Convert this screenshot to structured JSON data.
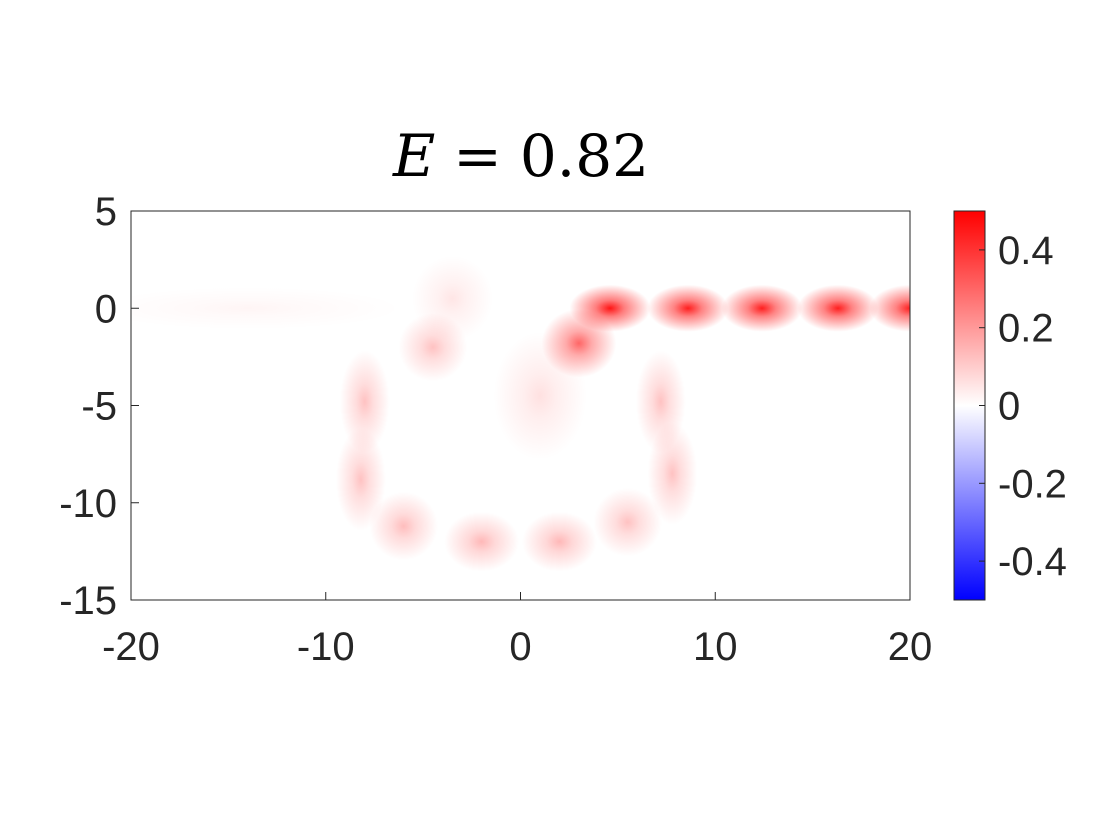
{
  "chart_data": {
    "type": "heatmap",
    "title": "E = 0.82",
    "title_parts": {
      "variable": "E",
      "equals": "=",
      "value": "0.82"
    },
    "xlabel": "",
    "ylabel": "",
    "xlim": [
      -20,
      20
    ],
    "ylim": [
      -15,
      5
    ],
    "xticks": [
      -20,
      -10,
      0,
      10,
      20
    ],
    "xtick_labels": [
      "-20",
      "-10",
      "0",
      "10",
      "20"
    ],
    "yticks": [
      5,
      0,
      -5,
      -10,
      -15
    ],
    "ytick_labels": [
      "5",
      "0",
      "-5",
      "-10",
      "-15"
    ],
    "colorbar": {
      "limits": [
        -0.5,
        0.5
      ],
      "ticks": [
        0.4,
        0.2,
        0,
        -0.2,
        -0.4
      ],
      "tick_labels": [
        "0.4",
        "0.2",
        "0",
        "-0.2",
        "-0.4"
      ],
      "colormap": [
        "#0000ff",
        "#ffffff",
        "#ff0000"
      ]
    },
    "grid": false,
    "blobs": [
      {
        "x": 4.6,
        "y": 0.0,
        "amp": 0.46,
        "sx": 1.3,
        "sy": 0.55
      },
      {
        "x": 8.6,
        "y": 0.0,
        "amp": 0.44,
        "sx": 1.3,
        "sy": 0.55
      },
      {
        "x": 12.4,
        "y": 0.0,
        "amp": 0.44,
        "sx": 1.3,
        "sy": 0.55
      },
      {
        "x": 16.3,
        "y": 0.0,
        "amp": 0.44,
        "sx": 1.3,
        "sy": 0.55
      },
      {
        "x": 20.0,
        "y": 0.0,
        "amp": 0.44,
        "sx": 1.3,
        "sy": 0.55
      },
      {
        "x": 3.0,
        "y": -1.8,
        "amp": 0.3,
        "sx": 1.2,
        "sy": 0.8
      },
      {
        "x": -4.5,
        "y": -2.0,
        "amp": 0.12,
        "sx": 1.1,
        "sy": 0.8
      },
      {
        "x": -8.0,
        "y": -4.8,
        "amp": 0.12,
        "sx": 0.8,
        "sy": 1.2
      },
      {
        "x": -8.2,
        "y": -8.8,
        "amp": 0.12,
        "sx": 0.8,
        "sy": 1.2
      },
      {
        "x": -6.0,
        "y": -11.2,
        "amp": 0.13,
        "sx": 1.1,
        "sy": 0.8
      },
      {
        "x": -2.0,
        "y": -12.0,
        "amp": 0.14,
        "sx": 1.2,
        "sy": 0.7
      },
      {
        "x": 2.0,
        "y": -12.0,
        "amp": 0.14,
        "sx": 1.2,
        "sy": 0.7
      },
      {
        "x": 5.5,
        "y": -11.0,
        "amp": 0.12,
        "sx": 1.1,
        "sy": 0.8
      },
      {
        "x": 7.8,
        "y": -8.5,
        "amp": 0.12,
        "sx": 0.8,
        "sy": 1.2
      },
      {
        "x": 7.2,
        "y": -4.8,
        "amp": 0.12,
        "sx": 0.8,
        "sy": 1.2
      },
      {
        "x": -3.5,
        "y": 0.5,
        "amp": 0.05,
        "sx": 1.3,
        "sy": 1.0
      },
      {
        "x": 1.0,
        "y": -4.5,
        "amp": 0.06,
        "sx": 1.5,
        "sy": 1.5
      },
      {
        "x": -14.0,
        "y": 0.0,
        "amp": 0.02,
        "sx": 5.0,
        "sy": 0.5
      }
    ]
  }
}
